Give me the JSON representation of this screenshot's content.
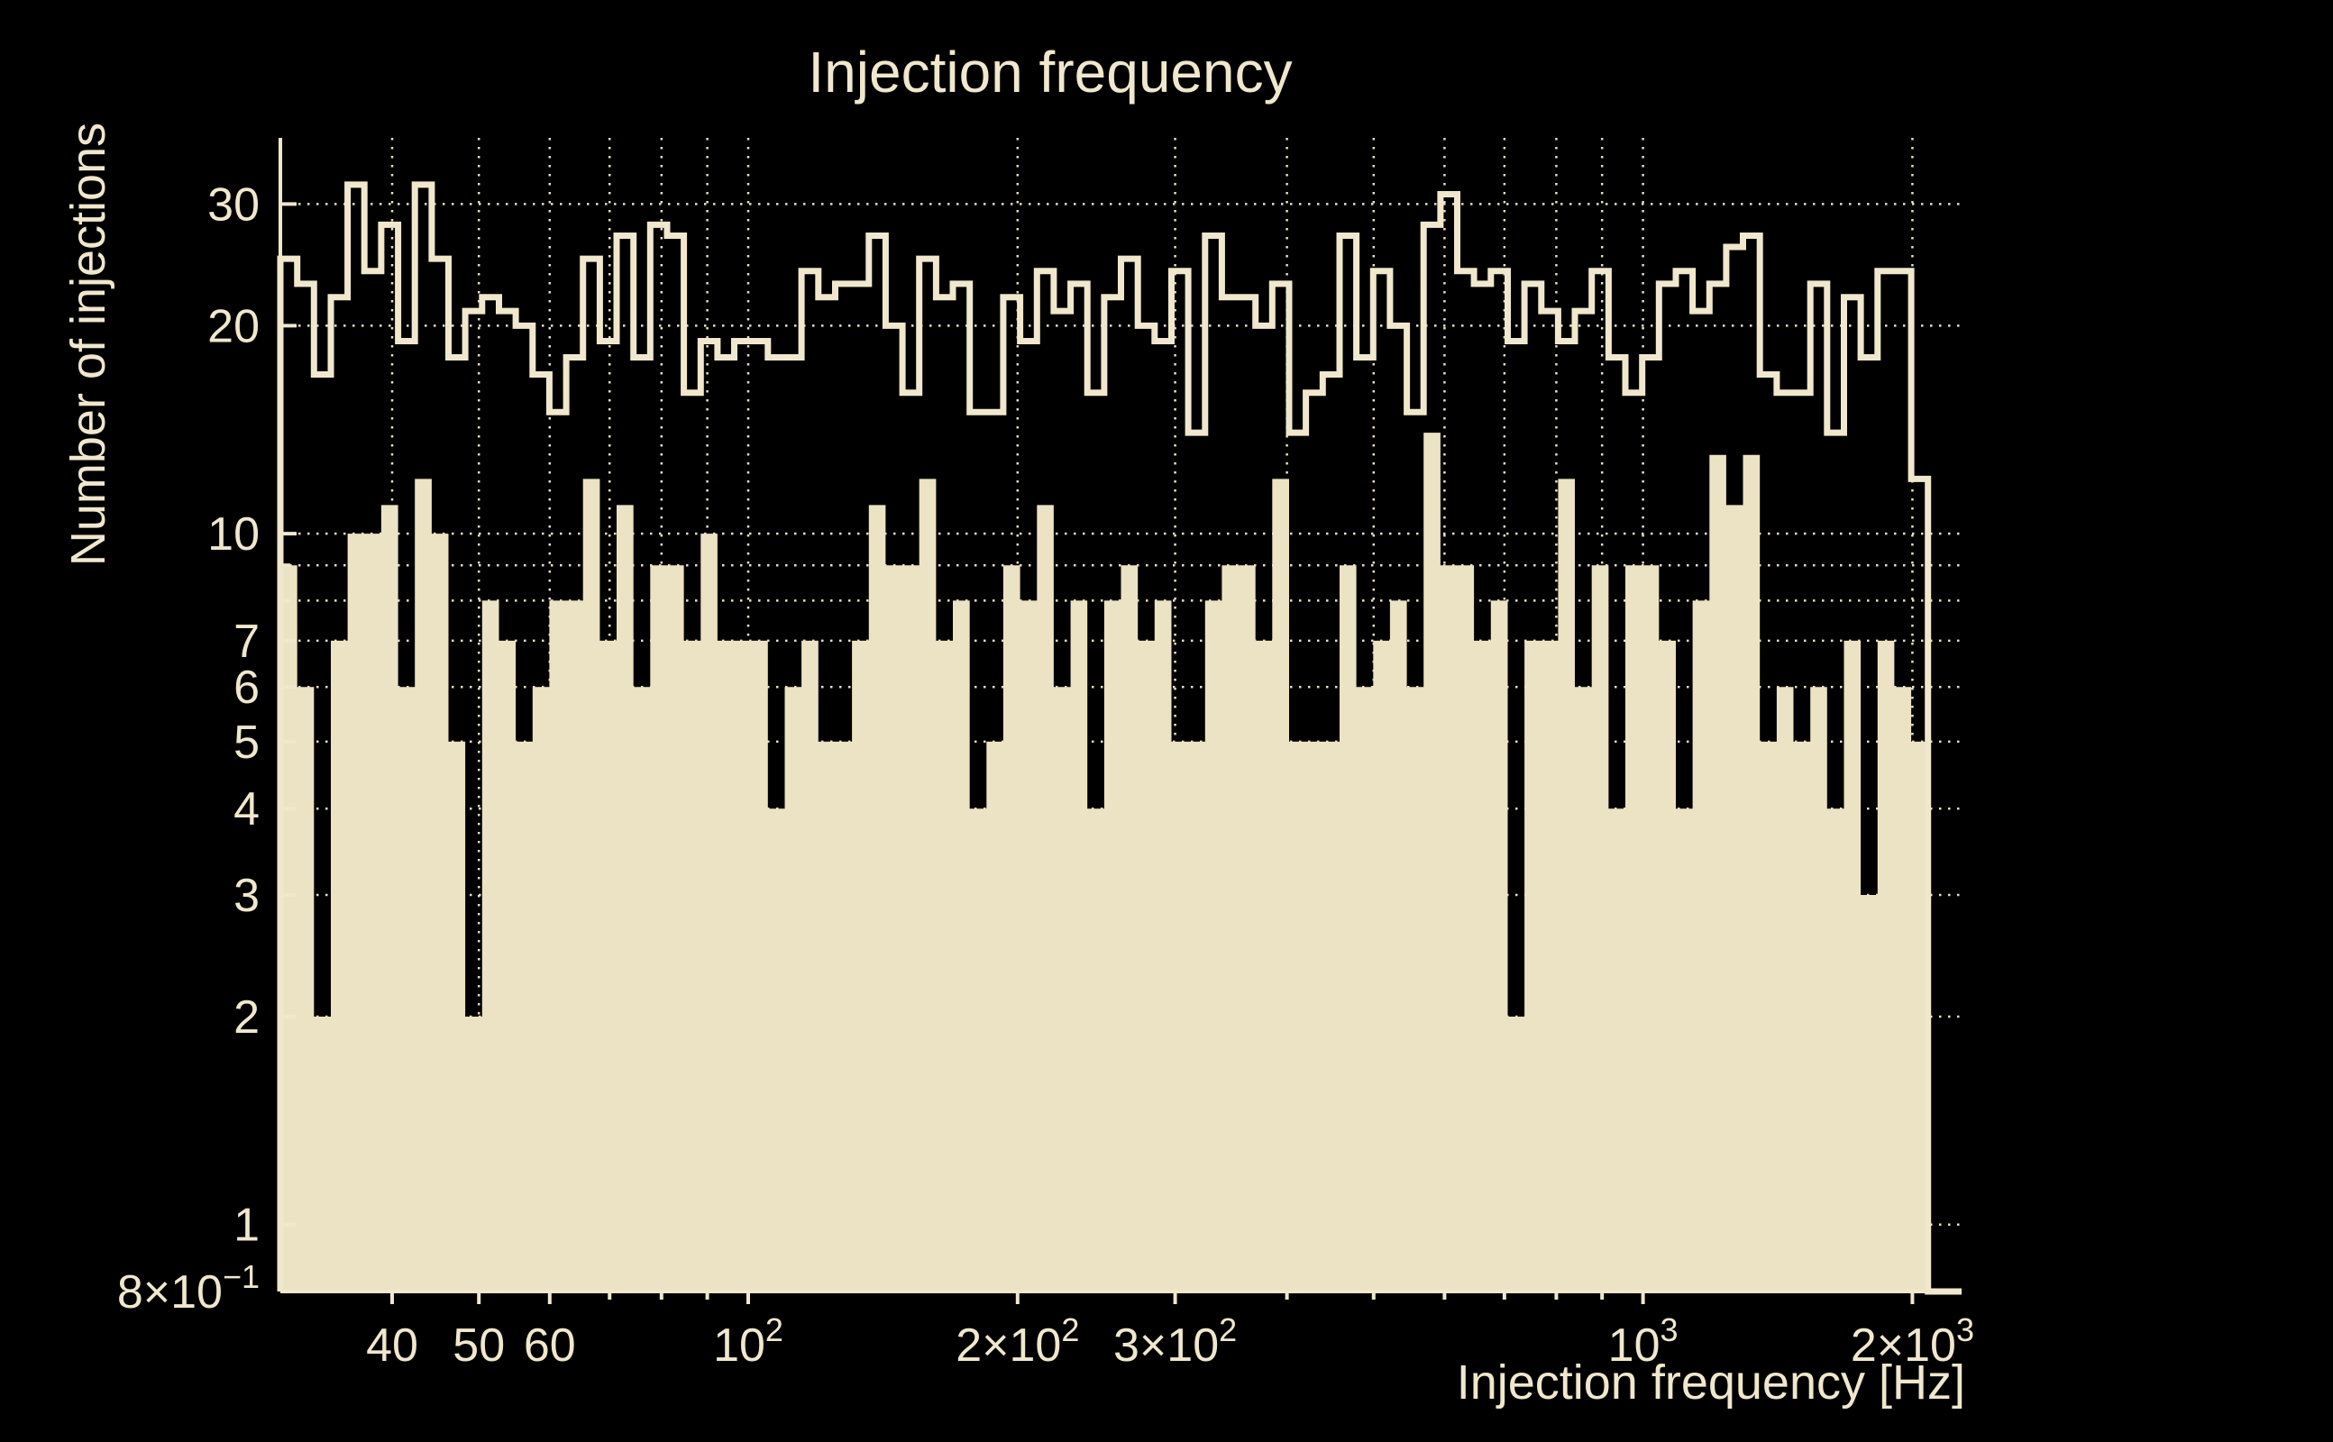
{
  "chart_data": {
    "type": "histogram",
    "title": "Injection frequency",
    "xlabel": "Injection frequency [Hz]",
    "ylabel": "Number of injections",
    "x_scale": "log",
    "y_scale": "log",
    "xlim": [
      30,
      2270
    ],
    "ylim": [
      0.8,
      37.4
    ],
    "n_bins": 100,
    "bin_edges_rule": "100 log-uniform bins spanning xlim",
    "grid": true,
    "legend_position": "none",
    "colors": {
      "background": "#000000",
      "foreground": "#F0E7CC",
      "bar_fill": "#ECE2C4",
      "outline": "#F0E7CC",
      "grid": "#E8DFC2"
    },
    "series": [
      {
        "name": "outline-step-histogram",
        "style": "step-outline",
        "values": [
          25,
          23,
          17,
          22,
          32,
          24,
          28,
          19,
          32,
          25,
          18,
          21,
          22,
          21,
          20,
          17,
          15,
          18,
          25,
          19,
          27,
          18,
          28,
          27,
          16,
          19,
          18,
          19,
          19,
          18,
          18,
          24,
          22,
          23,
          23,
          27,
          20,
          16,
          25,
          22,
          23,
          15,
          15,
          22,
          19,
          24,
          21,
          23,
          16,
          22,
          25,
          20,
          19,
          24,
          14,
          27,
          22,
          22,
          20,
          23,
          14,
          16,
          17,
          27,
          18,
          24,
          20,
          15,
          28,
          31,
          24,
          23,
          24,
          19,
          23,
          21,
          19,
          21,
          24,
          18,
          16,
          18,
          23,
          24,
          21,
          23,
          26,
          27,
          17,
          16,
          16,
          23,
          14,
          22,
          18,
          24,
          24,
          12,
          0,
          0
        ]
      },
      {
        "name": "filled-histogram",
        "style": "filled",
        "values": [
          9,
          6,
          2,
          7,
          10,
          10,
          11,
          6,
          12,
          10,
          5,
          2,
          8,
          7,
          5,
          6,
          8,
          8,
          12,
          7,
          11,
          6,
          9,
          9,
          7,
          10,
          7,
          7,
          7,
          4,
          6,
          7,
          5,
          5,
          7,
          11,
          9,
          9,
          12,
          7,
          8,
          4,
          5,
          9,
          8,
          11,
          6,
          8,
          4,
          8,
          9,
          7,
          8,
          5,
          5,
          8,
          9,
          9,
          7,
          12,
          5,
          5,
          5,
          9,
          6,
          7,
          8,
          6,
          14,
          9,
          9,
          7,
          8,
          2,
          7,
          7,
          12,
          6,
          9,
          4,
          9,
          9,
          7,
          4,
          8,
          13,
          11,
          13,
          5,
          6,
          5,
          6,
          4,
          7,
          3,
          7,
          6,
          5,
          0,
          0
        ]
      }
    ],
    "x_ticks": [
      {
        "v": 40,
        "label": "40"
      },
      {
        "v": 50,
        "label": "50"
      },
      {
        "v": 60,
        "label": "60"
      },
      {
        "v": 70
      },
      {
        "v": 80
      },
      {
        "v": 90
      },
      {
        "v": 100,
        "label": "10",
        "sup": "2"
      },
      {
        "v": 200,
        "label": "2×10",
        "sup": "2"
      },
      {
        "v": 300,
        "label": "3×10",
        "sup": "2"
      },
      {
        "v": 400
      },
      {
        "v": 500
      },
      {
        "v": 600
      },
      {
        "v": 700
      },
      {
        "v": 800
      },
      {
        "v": 900
      },
      {
        "v": 1000,
        "label": "10",
        "sup": "3"
      },
      {
        "v": 2000,
        "label": "2×10",
        "sup": "3"
      }
    ],
    "y_ticks": [
      {
        "v": 30,
        "label": "30"
      },
      {
        "v": 20,
        "label": "20"
      },
      {
        "v": 10,
        "label": "10"
      },
      {
        "v": 9
      },
      {
        "v": 8
      },
      {
        "v": 7,
        "label": "7"
      },
      {
        "v": 6,
        "label": "6"
      },
      {
        "v": 5,
        "label": "5"
      },
      {
        "v": 4,
        "label": "4"
      },
      {
        "v": 3,
        "label": "3"
      },
      {
        "v": 2,
        "label": "2"
      },
      {
        "v": 1,
        "label": "1"
      },
      {
        "v": 0.8,
        "label": "8×10",
        "sup": "−1"
      }
    ]
  }
}
